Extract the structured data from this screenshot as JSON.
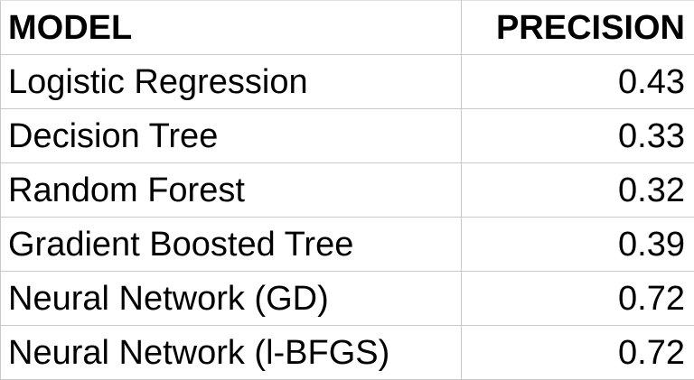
{
  "chart_data": {
    "type": "table",
    "columns": [
      "MODEL",
      "PRECISION"
    ],
    "rows": [
      {
        "model": "Logistic Regression",
        "precision": "0.43"
      },
      {
        "model": "Decision Tree",
        "precision": "0.33"
      },
      {
        "model": "Random Forest",
        "precision": "0.32"
      },
      {
        "model": "Gradient Boosted Tree",
        "precision": "0.39"
      },
      {
        "model": "Neural Network (GD)",
        "precision": "0.72"
      },
      {
        "model": "Neural Network (l-BFGS)",
        "precision": "0.72"
      }
    ]
  }
}
